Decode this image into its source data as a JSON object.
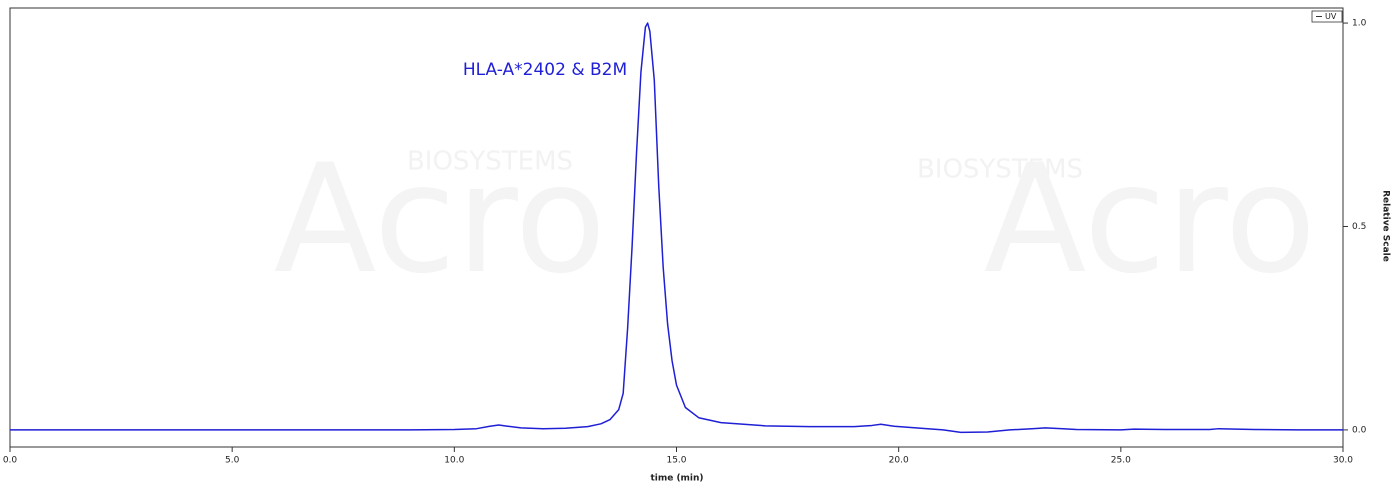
{
  "chart_data": {
    "type": "line",
    "annotation": "HLA-A*2402 & B2M",
    "xlabel": "time (min)",
    "ylabel": "Relative Scale",
    "watermarks": [
      "Acro",
      "BIOSYSTEMS",
      "Acro",
      "BIOSYSTEMS"
    ],
    "x": [
      0,
      1,
      2,
      3,
      4,
      5,
      6,
      7,
      8,
      9,
      10,
      10.5,
      10.8,
      11.0,
      11.2,
      11.5,
      12,
      12.5,
      13,
      13.3,
      13.5,
      13.7,
      13.8,
      13.9,
      14.0,
      14.1,
      14.2,
      14.3,
      14.35,
      14.4,
      14.5,
      14.6,
      14.7,
      14.8,
      14.9,
      15.0,
      15.2,
      15.5,
      16,
      17,
      18,
      19,
      19.4,
      19.6,
      19.9,
      20.5,
      21,
      21.4,
      22,
      22.5,
      23,
      23.3,
      23.7,
      24,
      25,
      25.3,
      26,
      27,
      27.2,
      28,
      29,
      30
    ],
    "series": [
      {
        "name": "UV",
        "color": "#1f1fd6",
        "values": [
          0,
          0,
          0,
          0,
          0,
          0,
          0,
          0,
          0,
          0,
          0.001,
          0.003,
          0.009,
          0.012,
          0.009,
          0.005,
          0.003,
          0.004,
          0.008,
          0.015,
          0.025,
          0.05,
          0.09,
          0.25,
          0.45,
          0.68,
          0.88,
          0.99,
          1.0,
          0.98,
          0.86,
          0.6,
          0.4,
          0.26,
          0.17,
          0.11,
          0.055,
          0.03,
          0.018,
          0.01,
          0.008,
          0.008,
          0.011,
          0.014,
          0.009,
          0.004,
          0.0,
          -0.006,
          -0.005,
          0.0,
          0.003,
          0.005,
          0.003,
          0.001,
          0.0,
          0.002,
          0.001,
          0.001,
          0.003,
          0.001,
          0.0,
          0.0
        ]
      }
    ],
    "xlim": [
      0,
      30
    ],
    "ylim": [
      -0.042,
      1.037
    ],
    "xticks": [
      {
        "value": 0,
        "label": "0.0"
      },
      {
        "value": 5,
        "label": "5.0"
      },
      {
        "value": 10,
        "label": "10.0"
      },
      {
        "value": 15,
        "label": "15.0"
      },
      {
        "value": 20,
        "label": "20.0"
      },
      {
        "value": 25,
        "label": "25.0"
      },
      {
        "value": 30,
        "label": "30.0"
      }
    ],
    "yticks": [
      {
        "value": 0,
        "label": "0.0"
      },
      {
        "value": 0.5,
        "label": "0.5"
      },
      {
        "value": 1,
        "label": "1.0"
      }
    ],
    "legend": "top-right"
  }
}
